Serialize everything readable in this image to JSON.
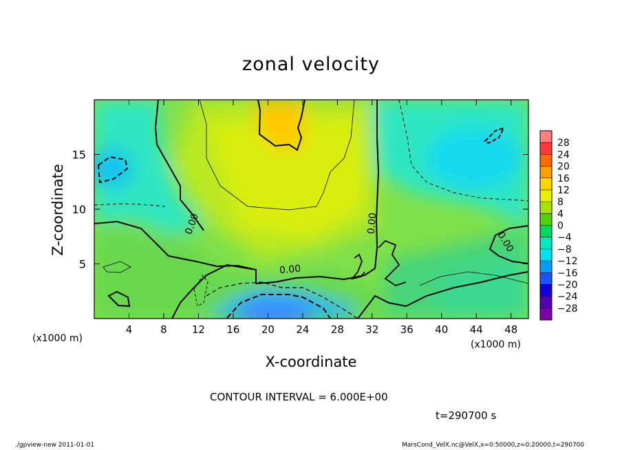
{
  "chart_data": {
    "type": "heatmap",
    "title": "zonal velocity",
    "xlabel": "X-coordinate",
    "ylabel": "Z-coordinate",
    "x_unit_label": "(x1000 m)",
    "x_ticks": [
      4,
      8,
      12,
      16,
      20,
      24,
      28,
      32,
      36,
      40,
      44,
      48
    ],
    "y_ticks": [
      5,
      10,
      15
    ],
    "xlim": [
      0,
      50
    ],
    "ylim": [
      0,
      20
    ],
    "colorbar": {
      "levels": [
        28,
        24,
        20,
        16,
        12,
        8,
        4,
        0,
        -4,
        -8,
        -12,
        -16,
        -20,
        -24,
        -28
      ],
      "colors": [
        "#ff8080",
        "#ff3838",
        "#ff6a00",
        "#ff9f00",
        "#ffd700",
        "#e8f000",
        "#a8e000",
        "#58d000",
        "#00d860",
        "#00e8c0",
        "#00e0f0",
        "#009cff",
        "#1e50ff",
        "#1000d8",
        "#5000b0",
        "#7a00a8"
      ]
    },
    "contour_labels": [
      "0.00",
      "0.00",
      "0.00",
      "0.00"
    ],
    "contour_interval": "CONTOUR INTERVAL = 6.000E+00",
    "time": "t=290700 s"
  },
  "footer": {
    "left": "./gpview-new   2011-01-01",
    "right": "MarsCond_VelX.nc@VelX,x=0:50000,z=0:20000,t=290700"
  }
}
